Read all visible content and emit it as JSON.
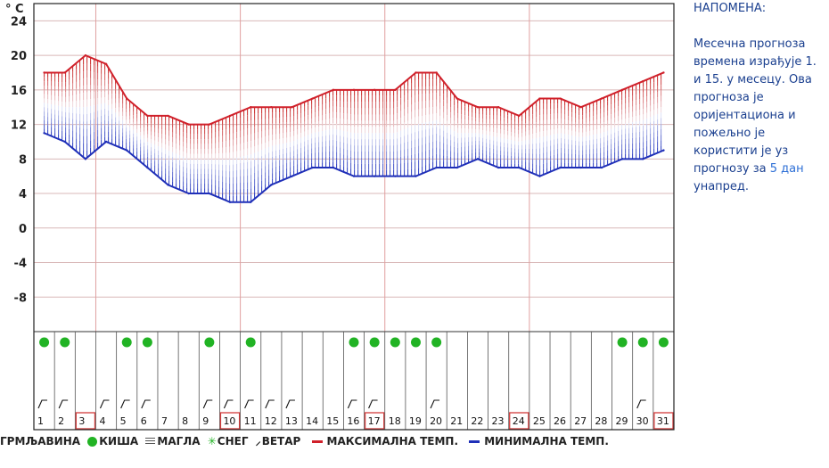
{
  "chart_data": {
    "type": "line",
    "unit_label": "° C",
    "ylim": [
      -12,
      26
    ],
    "ytick_labels": [
      "24",
      "20",
      "16",
      "12",
      "8",
      "4",
      "0",
      "-4",
      "-8"
    ],
    "yticks": [
      24,
      20,
      16,
      12,
      8,
      4,
      0,
      -4,
      -8
    ],
    "days": [
      "1",
      "2",
      "3",
      "4",
      "5",
      "6",
      "7",
      "8",
      "9",
      "10",
      "11",
      "12",
      "13",
      "14",
      "15",
      "16",
      "17",
      "18",
      "19",
      "20",
      "21",
      "22",
      "23",
      "24",
      "25",
      "26",
      "27",
      "28",
      "29",
      "30",
      "31"
    ],
    "highlighted_days": [
      3,
      10,
      17,
      24,
      31
    ],
    "series": [
      {
        "name": "МАКСИМАЛНА ТЕМП.",
        "color": "#d0202a",
        "values": [
          18,
          18,
          20,
          19,
          15,
          13,
          13,
          12,
          12,
          13,
          14,
          14,
          14,
          15,
          16,
          16,
          16,
          16,
          18,
          18,
          15,
          14,
          14,
          13,
          15,
          15,
          14,
          15,
          16,
          17,
          18
        ]
      },
      {
        "name": "МИНИМАЛНА ТЕМП.",
        "color": "#1f2fb8",
        "values": [
          11,
          10,
          8,
          10,
          9,
          7,
          5,
          4,
          4,
          3,
          3,
          5,
          6,
          7,
          7,
          6,
          6,
          6,
          6,
          7,
          7,
          8,
          7,
          7,
          6,
          7,
          7,
          7,
          8,
          8,
          9
        ]
      }
    ],
    "rain_days": [
      1,
      2,
      5,
      6,
      9,
      11,
      16,
      17,
      18,
      19,
      20,
      29,
      30,
      31
    ],
    "wind_days": [
      1,
      2,
      4,
      5,
      6,
      9,
      10,
      11,
      12,
      13,
      16,
      17,
      20,
      30
    ],
    "grid": true
  },
  "note": {
    "title": "НАПОМЕНА:",
    "text": "Месечна прогноза времена израђује 1. и 15. у месецу. Ова прогноза је оријентациона и пожељно је користити је уз прогнозу за ",
    "link": "5 дан",
    "text_end": " унапред."
  },
  "legend": {
    "thunder": "ГРМЉАВИНА",
    "rain": "КИША",
    "fog": "МАГЛА",
    "snow": "СНЕГ",
    "wind": "ВЕТАР",
    "max": "МАКСИМАЛНА ТЕМП.",
    "min": "МИНИМАЛНА ТЕМП."
  },
  "icons": {
    "rain": "green-dot-icon",
    "wind": "wind-flag-icon",
    "fog": "fog-lines-icon",
    "snow": "snowflake-icon"
  },
  "colors": {
    "max": "#d0202a",
    "min": "#1f2fb8",
    "rain": "#21b324",
    "grid": "#c8a0a0",
    "highlight": "#d23b3b"
  }
}
